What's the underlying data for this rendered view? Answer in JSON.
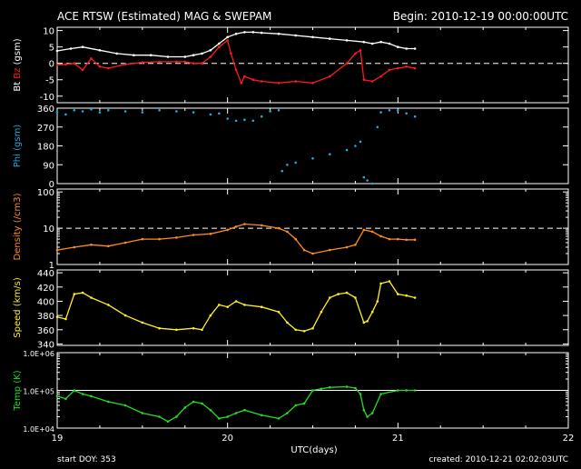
{
  "header": {
    "title": "ACE RTSW (Estimated) MAG & SWEPAM",
    "begin": "Begin: 2010-12-19 00:00:00UTC"
  },
  "footer": {
    "start_doy": "start DOY: 353",
    "created": "created: 2010-12-21 02:02:03UTC",
    "xlabel": "UTC(days)"
  },
  "colors": {
    "background": "#000000",
    "axes": "#ffffff",
    "bt": "#ffffff",
    "bz": "#ff1a1a",
    "phi": "#22aadd",
    "density": "#ff8c1a",
    "speed": "#ffee22",
    "temp": "#22dd22"
  },
  "chart_data": [
    {
      "type": "line",
      "panel": "magnetic field",
      "ylabel_parts": [
        {
          "text": "Bt",
          "color": "#ffffff"
        },
        {
          "text": "Bz",
          "color": "#ff1a1a"
        },
        {
          "text": "(gsm)",
          "color": "#ffffff"
        }
      ],
      "ylim": [
        -12,
        11
      ],
      "yticks": [
        -10,
        -5,
        0,
        5,
        10
      ],
      "ytick_labels": [
        "-10",
        "-5",
        "0",
        "5",
        "10"
      ],
      "hlines": [
        {
          "y": 0,
          "style": "dashed"
        }
      ],
      "xlim": [
        19,
        22
      ],
      "series": [
        {
          "name": "Bt",
          "color": "#ffffff",
          "x": [
            19.0,
            19.08,
            19.15,
            19.25,
            19.35,
            19.45,
            19.55,
            19.65,
            19.75,
            19.8,
            19.85,
            19.9,
            19.95,
            20.0,
            20.05,
            20.1,
            20.15,
            20.2,
            20.3,
            20.4,
            20.5,
            20.6,
            20.7,
            20.8,
            20.85,
            20.9,
            20.95,
            21.0,
            21.05,
            21.1
          ],
          "y": [
            3.8,
            4.5,
            5.0,
            4.0,
            3.0,
            2.5,
            2.5,
            2.0,
            2.0,
            2.5,
            3.0,
            4.0,
            6.0,
            8.0,
            9.0,
            9.5,
            9.5,
            9.3,
            9.0,
            8.5,
            8.0,
            7.5,
            7.0,
            6.5,
            6.0,
            6.5,
            6.0,
            5.0,
            4.5,
            4.5
          ]
        },
        {
          "name": "Bz",
          "color": "#ff1a1a",
          "x": [
            19.0,
            19.05,
            19.1,
            19.15,
            19.2,
            19.25,
            19.3,
            19.4,
            19.5,
            19.6,
            19.7,
            19.75,
            19.8,
            19.85,
            19.9,
            19.95,
            20.0,
            20.02,
            20.05,
            20.08,
            20.1,
            20.15,
            20.2,
            20.3,
            20.4,
            20.5,
            20.6,
            20.7,
            20.75,
            20.78,
            20.8,
            20.85,
            20.9,
            20.95,
            21.0,
            21.05,
            21.1
          ],
          "y": [
            -0.5,
            -0.3,
            0.0,
            -2.0,
            1.5,
            -1.0,
            -1.5,
            -0.3,
            0.3,
            0.5,
            0.5,
            0.5,
            0.0,
            0.0,
            2.0,
            5.0,
            7.0,
            3.0,
            -2.0,
            -6.0,
            -4.0,
            -5.0,
            -5.5,
            -6.0,
            -5.5,
            -6.0,
            -4.0,
            0.0,
            3.0,
            4.0,
            -5.0,
            -5.5,
            -4.0,
            -2.0,
            -1.5,
            -1.0,
            -1.5
          ]
        }
      ]
    },
    {
      "type": "scatter",
      "panel": "Phi",
      "ylabel": "Phi (gsm)",
      "ylabel_color": "#22aadd",
      "ylim": [
        0,
        360
      ],
      "yticks": [
        0,
        90,
        180,
        270,
        360
      ],
      "ytick_labels": [
        "0",
        "90",
        "180",
        "270",
        "360"
      ],
      "xlim": [
        19,
        22
      ],
      "series": [
        {
          "name": "Phi",
          "color": "#22aadd",
          "x": [
            19.0,
            19.05,
            19.1,
            19.15,
            19.2,
            19.25,
            19.3,
            19.4,
            19.5,
            19.6,
            19.7,
            19.8,
            19.9,
            19.95,
            20.0,
            20.05,
            20.1,
            20.15,
            20.2,
            20.25,
            20.3,
            20.32,
            20.35,
            20.4,
            20.5,
            20.6,
            20.7,
            20.75,
            20.78,
            20.8,
            20.82,
            20.85,
            20.88,
            20.9,
            20.95,
            21.0,
            21.05,
            21.1
          ],
          "y": [
            340,
            330,
            350,
            345,
            355,
            340,
            350,
            345,
            340,
            350,
            345,
            340,
            330,
            335,
            310,
            300,
            305,
            300,
            320,
            345,
            350,
            60,
            90,
            100,
            120,
            140,
            160,
            180,
            200,
            30,
            15,
            0,
            270,
            340,
            350,
            350,
            335,
            320
          ]
        }
      ]
    },
    {
      "type": "line",
      "panel": "Density",
      "ylabel": "Density (/cm3)",
      "ylabel_color": "#ff8c1a",
      "yscale": "log",
      "ylim": [
        1,
        120
      ],
      "yticks": [
        1,
        10,
        100
      ],
      "ytick_labels": [
        "1",
        "10",
        "100"
      ],
      "hlines": [
        {
          "y": 10,
          "style": "dashed"
        }
      ],
      "xlim": [
        19,
        22
      ],
      "series": [
        {
          "name": "Density",
          "color": "#ff8c1a",
          "x": [
            19.0,
            19.1,
            19.2,
            19.3,
            19.4,
            19.5,
            19.6,
            19.7,
            19.8,
            19.9,
            20.0,
            20.05,
            20.1,
            20.2,
            20.3,
            20.35,
            20.4,
            20.45,
            20.5,
            20.6,
            20.7,
            20.75,
            20.8,
            20.85,
            20.9,
            20.95,
            21.0,
            21.05,
            21.1
          ],
          "y": [
            2.5,
            3.0,
            3.5,
            3.2,
            4.0,
            5.0,
            5.0,
            5.5,
            6.5,
            7.0,
            9.0,
            11.0,
            13.0,
            12.0,
            10.0,
            8.0,
            5.0,
            2.5,
            2.0,
            2.5,
            3.0,
            3.5,
            9.0,
            8.0,
            6.0,
            5.0,
            5.0,
            4.8,
            4.8
          ]
        }
      ]
    },
    {
      "type": "line",
      "panel": "Speed",
      "ylabel": "Speed (km/s)",
      "ylabel_color": "#ffee22",
      "ylim": [
        338,
        444
      ],
      "yticks": [
        340,
        360,
        380,
        400,
        420,
        440
      ],
      "ytick_labels": [
        "340",
        "360",
        "380",
        "400",
        "420",
        "440"
      ],
      "xlim": [
        19,
        22
      ],
      "series": [
        {
          "name": "Speed",
          "color": "#ffee22",
          "x": [
            19.0,
            19.05,
            19.1,
            19.15,
            19.2,
            19.3,
            19.4,
            19.5,
            19.6,
            19.7,
            19.8,
            19.85,
            19.9,
            19.95,
            20.0,
            20.05,
            20.1,
            20.2,
            20.3,
            20.35,
            20.4,
            20.45,
            20.5,
            20.55,
            20.6,
            20.65,
            20.7,
            20.75,
            20.8,
            20.82,
            20.85,
            20.88,
            20.9,
            20.95,
            21.0,
            21.05,
            21.1
          ],
          "y": [
            378,
            375,
            410,
            412,
            405,
            395,
            380,
            370,
            362,
            360,
            362,
            360,
            380,
            395,
            392,
            400,
            395,
            392,
            385,
            370,
            360,
            358,
            362,
            385,
            405,
            410,
            412,
            405,
            370,
            372,
            385,
            400,
            425,
            428,
            410,
            408,
            405
          ]
        }
      ]
    },
    {
      "type": "line",
      "panel": "Temp",
      "ylabel": "Temp (K)",
      "ylabel_color": "#22dd22",
      "yscale": "log",
      "ylim": [
        10000,
        1000000
      ],
      "yticks": [
        10000,
        100000,
        1000000
      ],
      "ytick_labels": [
        "1.0E+04",
        "1.0E+05",
        "1.0E+06"
      ],
      "hlines": [
        {
          "y": 100000,
          "style": "solid"
        }
      ],
      "xlim": [
        19,
        22
      ],
      "xticks": [
        19,
        20,
        21,
        22
      ],
      "xtick_labels": [
        "19",
        "20",
        "21",
        "22"
      ],
      "series": [
        {
          "name": "Temp",
          "color": "#22dd22",
          "x": [
            19.0,
            19.05,
            19.1,
            19.15,
            19.2,
            19.3,
            19.4,
            19.5,
            19.6,
            19.65,
            19.7,
            19.75,
            19.8,
            19.85,
            19.9,
            19.95,
            20.0,
            20.05,
            20.1,
            20.2,
            20.3,
            20.35,
            20.4,
            20.45,
            20.5,
            20.55,
            20.6,
            20.7,
            20.75,
            20.78,
            20.8,
            20.82,
            20.85,
            20.9,
            21.0,
            21.05,
            21.1
          ],
          "y": [
            70000,
            60000,
            100000,
            80000,
            70000,
            50000,
            40000,
            25000,
            20000,
            15000,
            20000,
            35000,
            50000,
            45000,
            30000,
            18000,
            20000,
            25000,
            30000,
            22000,
            18000,
            25000,
            40000,
            45000,
            100000,
            110000,
            120000,
            125000,
            115000,
            80000,
            30000,
            20000,
            25000,
            80000,
            100000,
            100000,
            100000
          ]
        }
      ]
    }
  ]
}
